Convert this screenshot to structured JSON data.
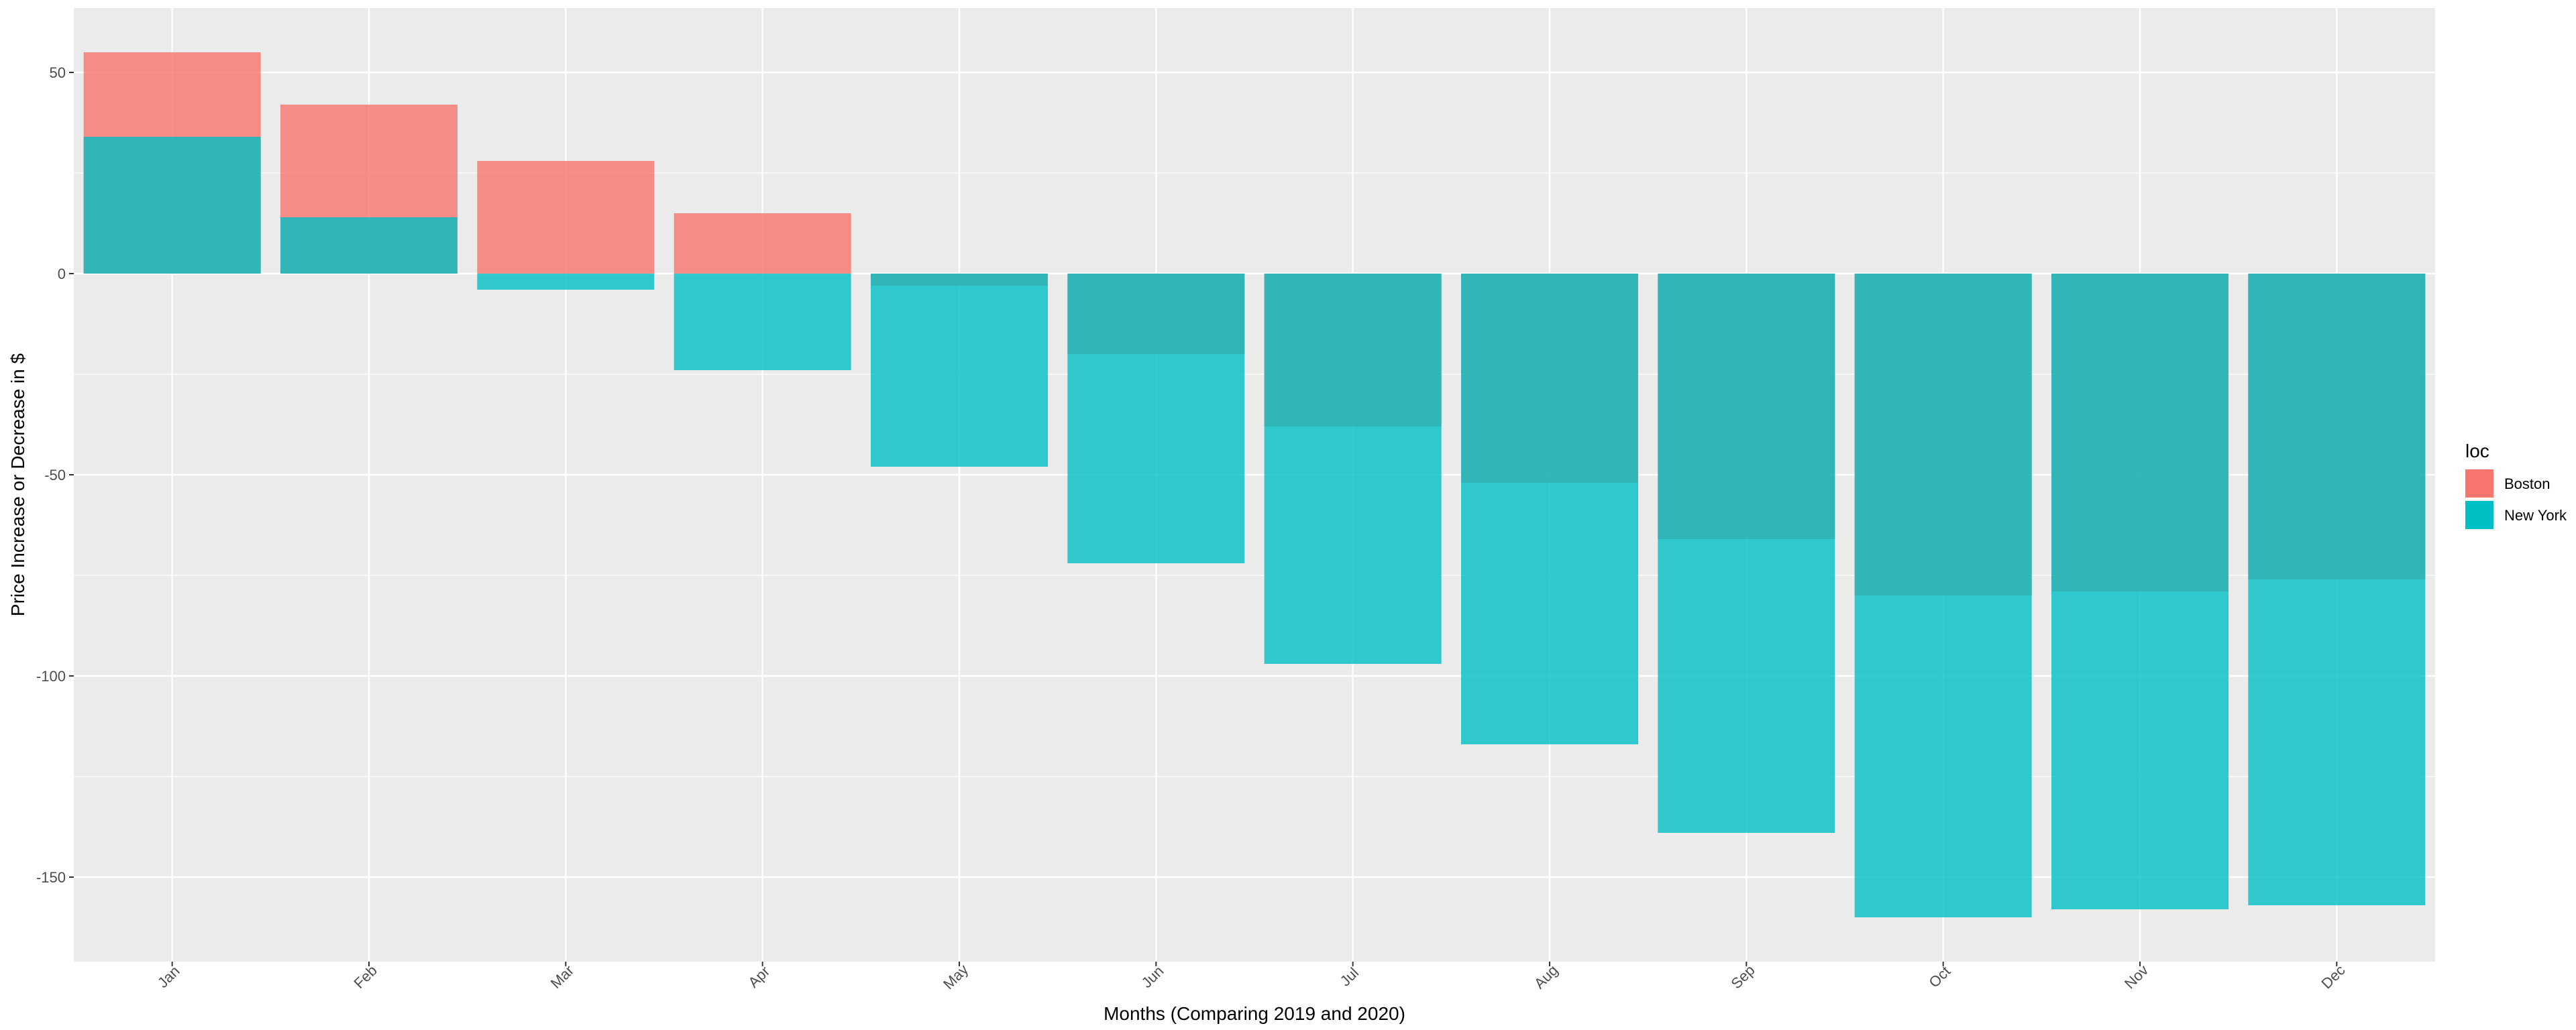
{
  "chart_data": {
    "type": "bar",
    "categories": [
      "Jan",
      "Feb",
      "Mar",
      "Apr",
      "May",
      "Jun",
      "Jul",
      "Aug",
      "Sep",
      "Oct",
      "Nov",
      "Dec"
    ],
    "series": [
      {
        "name": "Boston",
        "color": "#F8766D",
        "values": [
          55,
          42,
          28,
          15,
          -3,
          -20,
          -38,
          -52,
          -66,
          -80,
          -79,
          -76
        ]
      },
      {
        "name": "New York",
        "color": "#00BFC4",
        "values": [
          34,
          14,
          -4,
          -24,
          -48,
          -72,
          -97,
          -117,
          -139,
          -160,
          -158,
          -157
        ]
      }
    ],
    "xlabel": "Months (Comparing 2019 and 2020)",
    "ylabel": "Price Increase or Decrease in $",
    "ylim": [
      -171,
      66
    ],
    "yticks": [
      50,
      0,
      -50,
      -100,
      -150
    ],
    "grid": true,
    "legend": {
      "title": "loc",
      "position": "right"
    },
    "panel_background": "#EBEBEB",
    "overlap": "bars overlaid semi-transparent (alpha ≈ 0.8)"
  }
}
